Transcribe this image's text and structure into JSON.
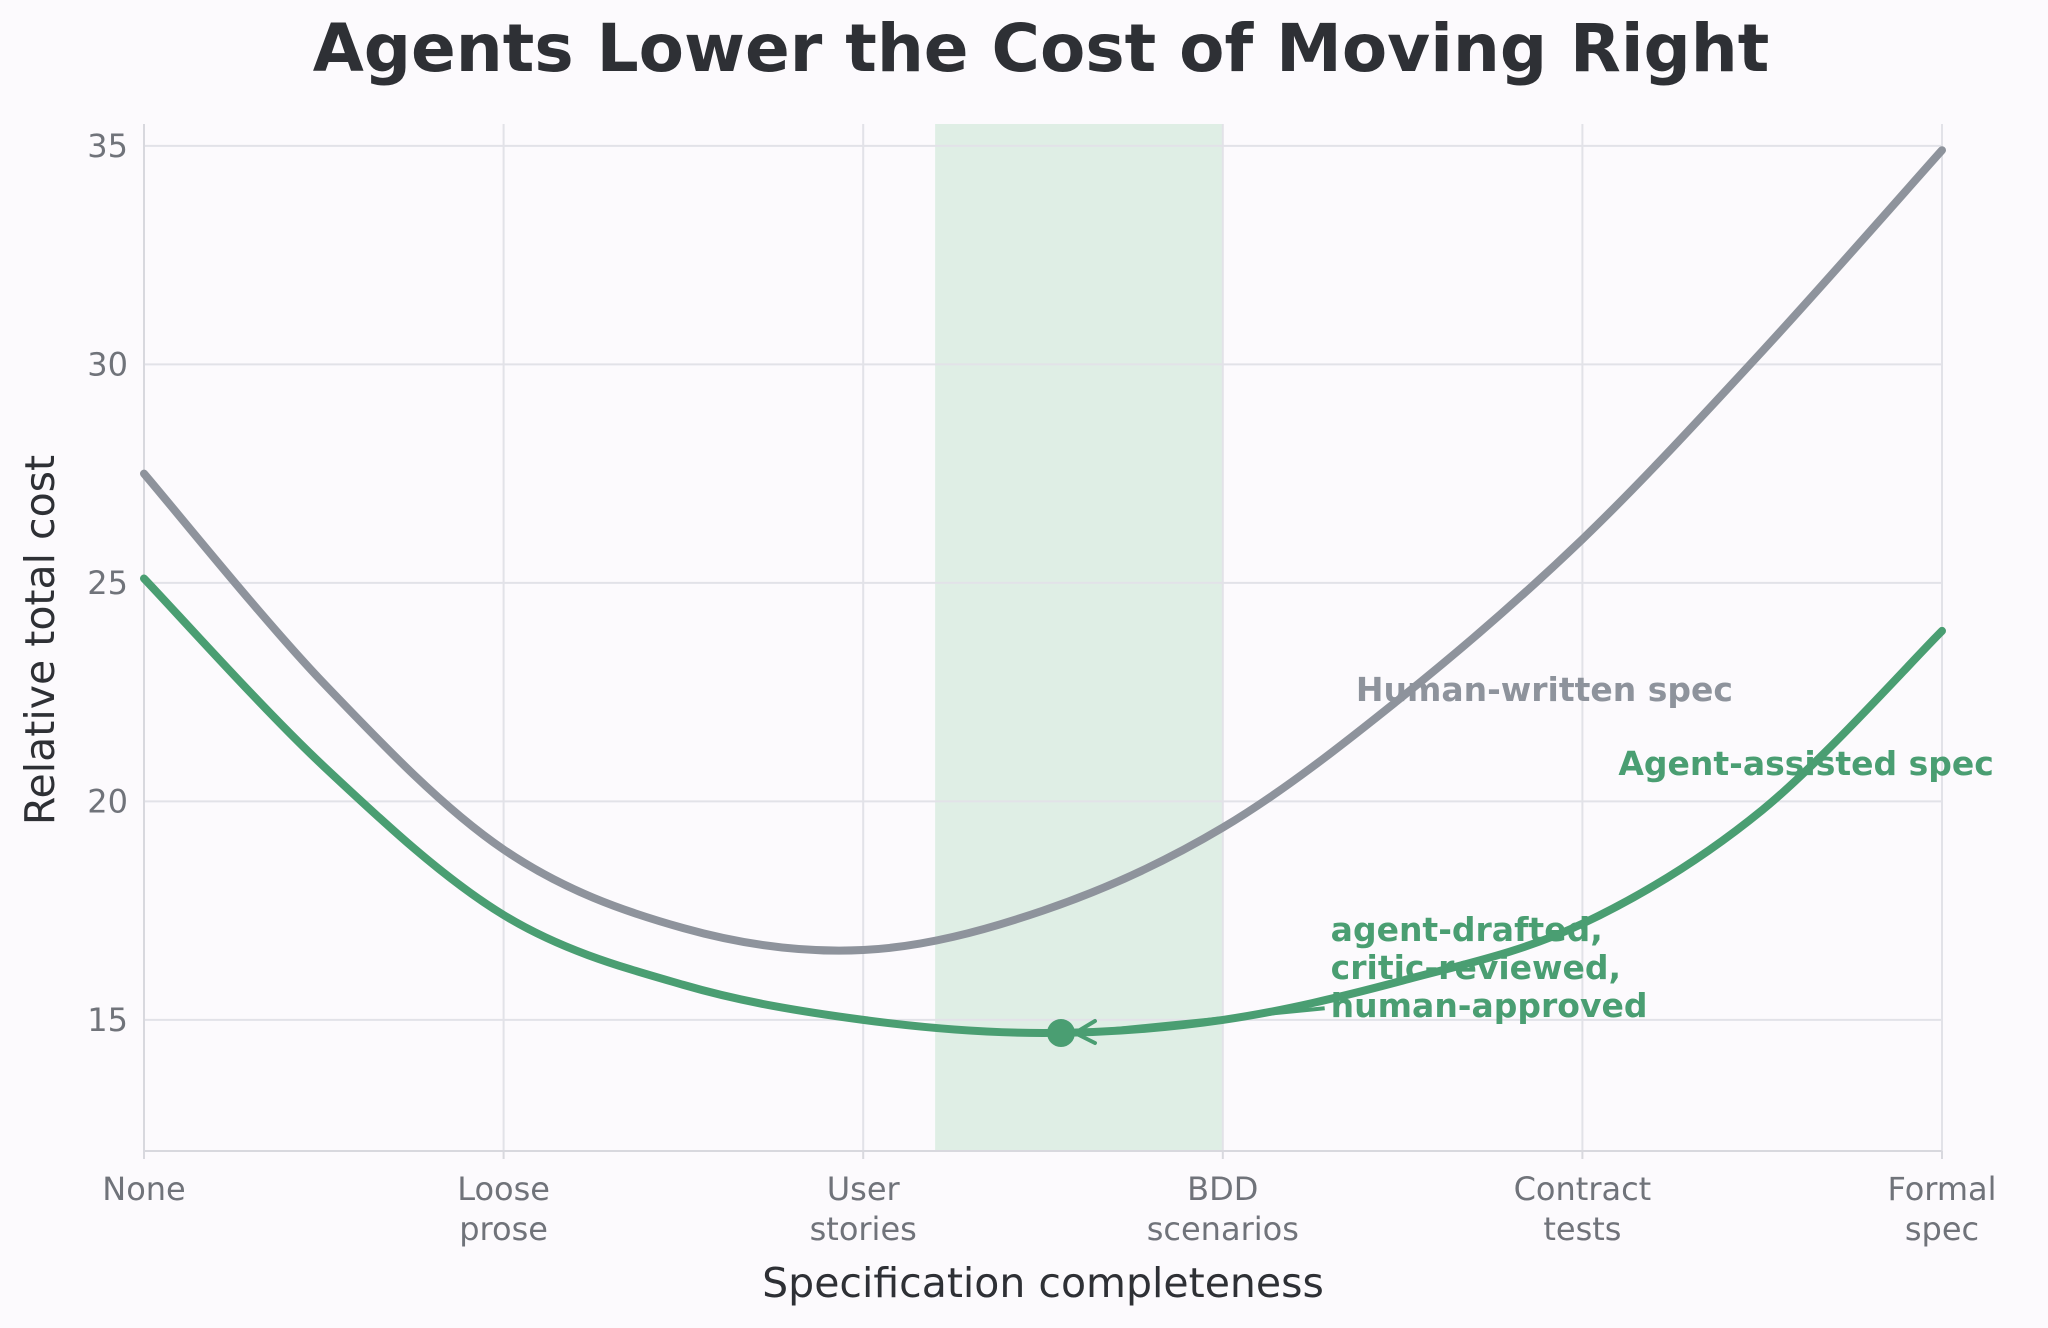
{
  "chart_data": {
    "type": "line",
    "title": "Agents Lower the Cost of Moving Right",
    "xlabel": "Specification completeness",
    "ylabel": "Relative total cost",
    "x_categories": [
      [
        "None"
      ],
      [
        "Loose",
        "prose"
      ],
      [
        "User",
        "stories"
      ],
      [
        "BDD",
        "scenarios"
      ],
      [
        "Contract",
        "tests"
      ],
      [
        "Formal",
        "spec"
      ]
    ],
    "xlim": [
      0,
      5
    ],
    "ylim": [
      12,
      35.5
    ],
    "yticks": [
      15,
      20,
      25,
      30,
      35
    ],
    "grid": true,
    "highlight_band": {
      "x": [
        2.2,
        3.0
      ],
      "color": "#dfeee5"
    },
    "series": [
      {
        "name": "Human-written spec",
        "color": "#8e939c",
        "x": [
          0,
          0.5,
          1,
          1.5,
          2,
          2.5,
          3,
          3.5,
          4,
          4.5,
          5
        ],
        "y": [
          27.5,
          22.7,
          18.9,
          17.1,
          16.6,
          17.5,
          19.4,
          22.4,
          26.0,
          30.3,
          34.9
        ]
      },
      {
        "name": "Agent-assisted spec",
        "color": "#4a9e72",
        "x": [
          0,
          0.5,
          1,
          1.5,
          2,
          2.5,
          3,
          3.5,
          4,
          4.5,
          5
        ],
        "y": [
          25.1,
          20.8,
          17.4,
          15.8,
          15.0,
          14.7,
          15.0,
          15.9,
          17.2,
          19.8,
          23.9
        ]
      }
    ],
    "marker": {
      "series": "Agent-assisted spec",
      "x": 2.55,
      "y": 14.7,
      "label": [
        "agent-drafted,",
        "critic-reviewed,",
        "human-approved"
      ]
    },
    "line_labels": [
      {
        "series": "Human-written spec",
        "text": "Human-written spec",
        "x": 3.37,
        "y": 22.3
      },
      {
        "series": "Agent-assisted spec",
        "text": "Agent-assisted spec",
        "x": 4.1,
        "y": 20.6
      }
    ],
    "marker_label_pos": {
      "x": 3.3,
      "y": 16.8
    }
  }
}
